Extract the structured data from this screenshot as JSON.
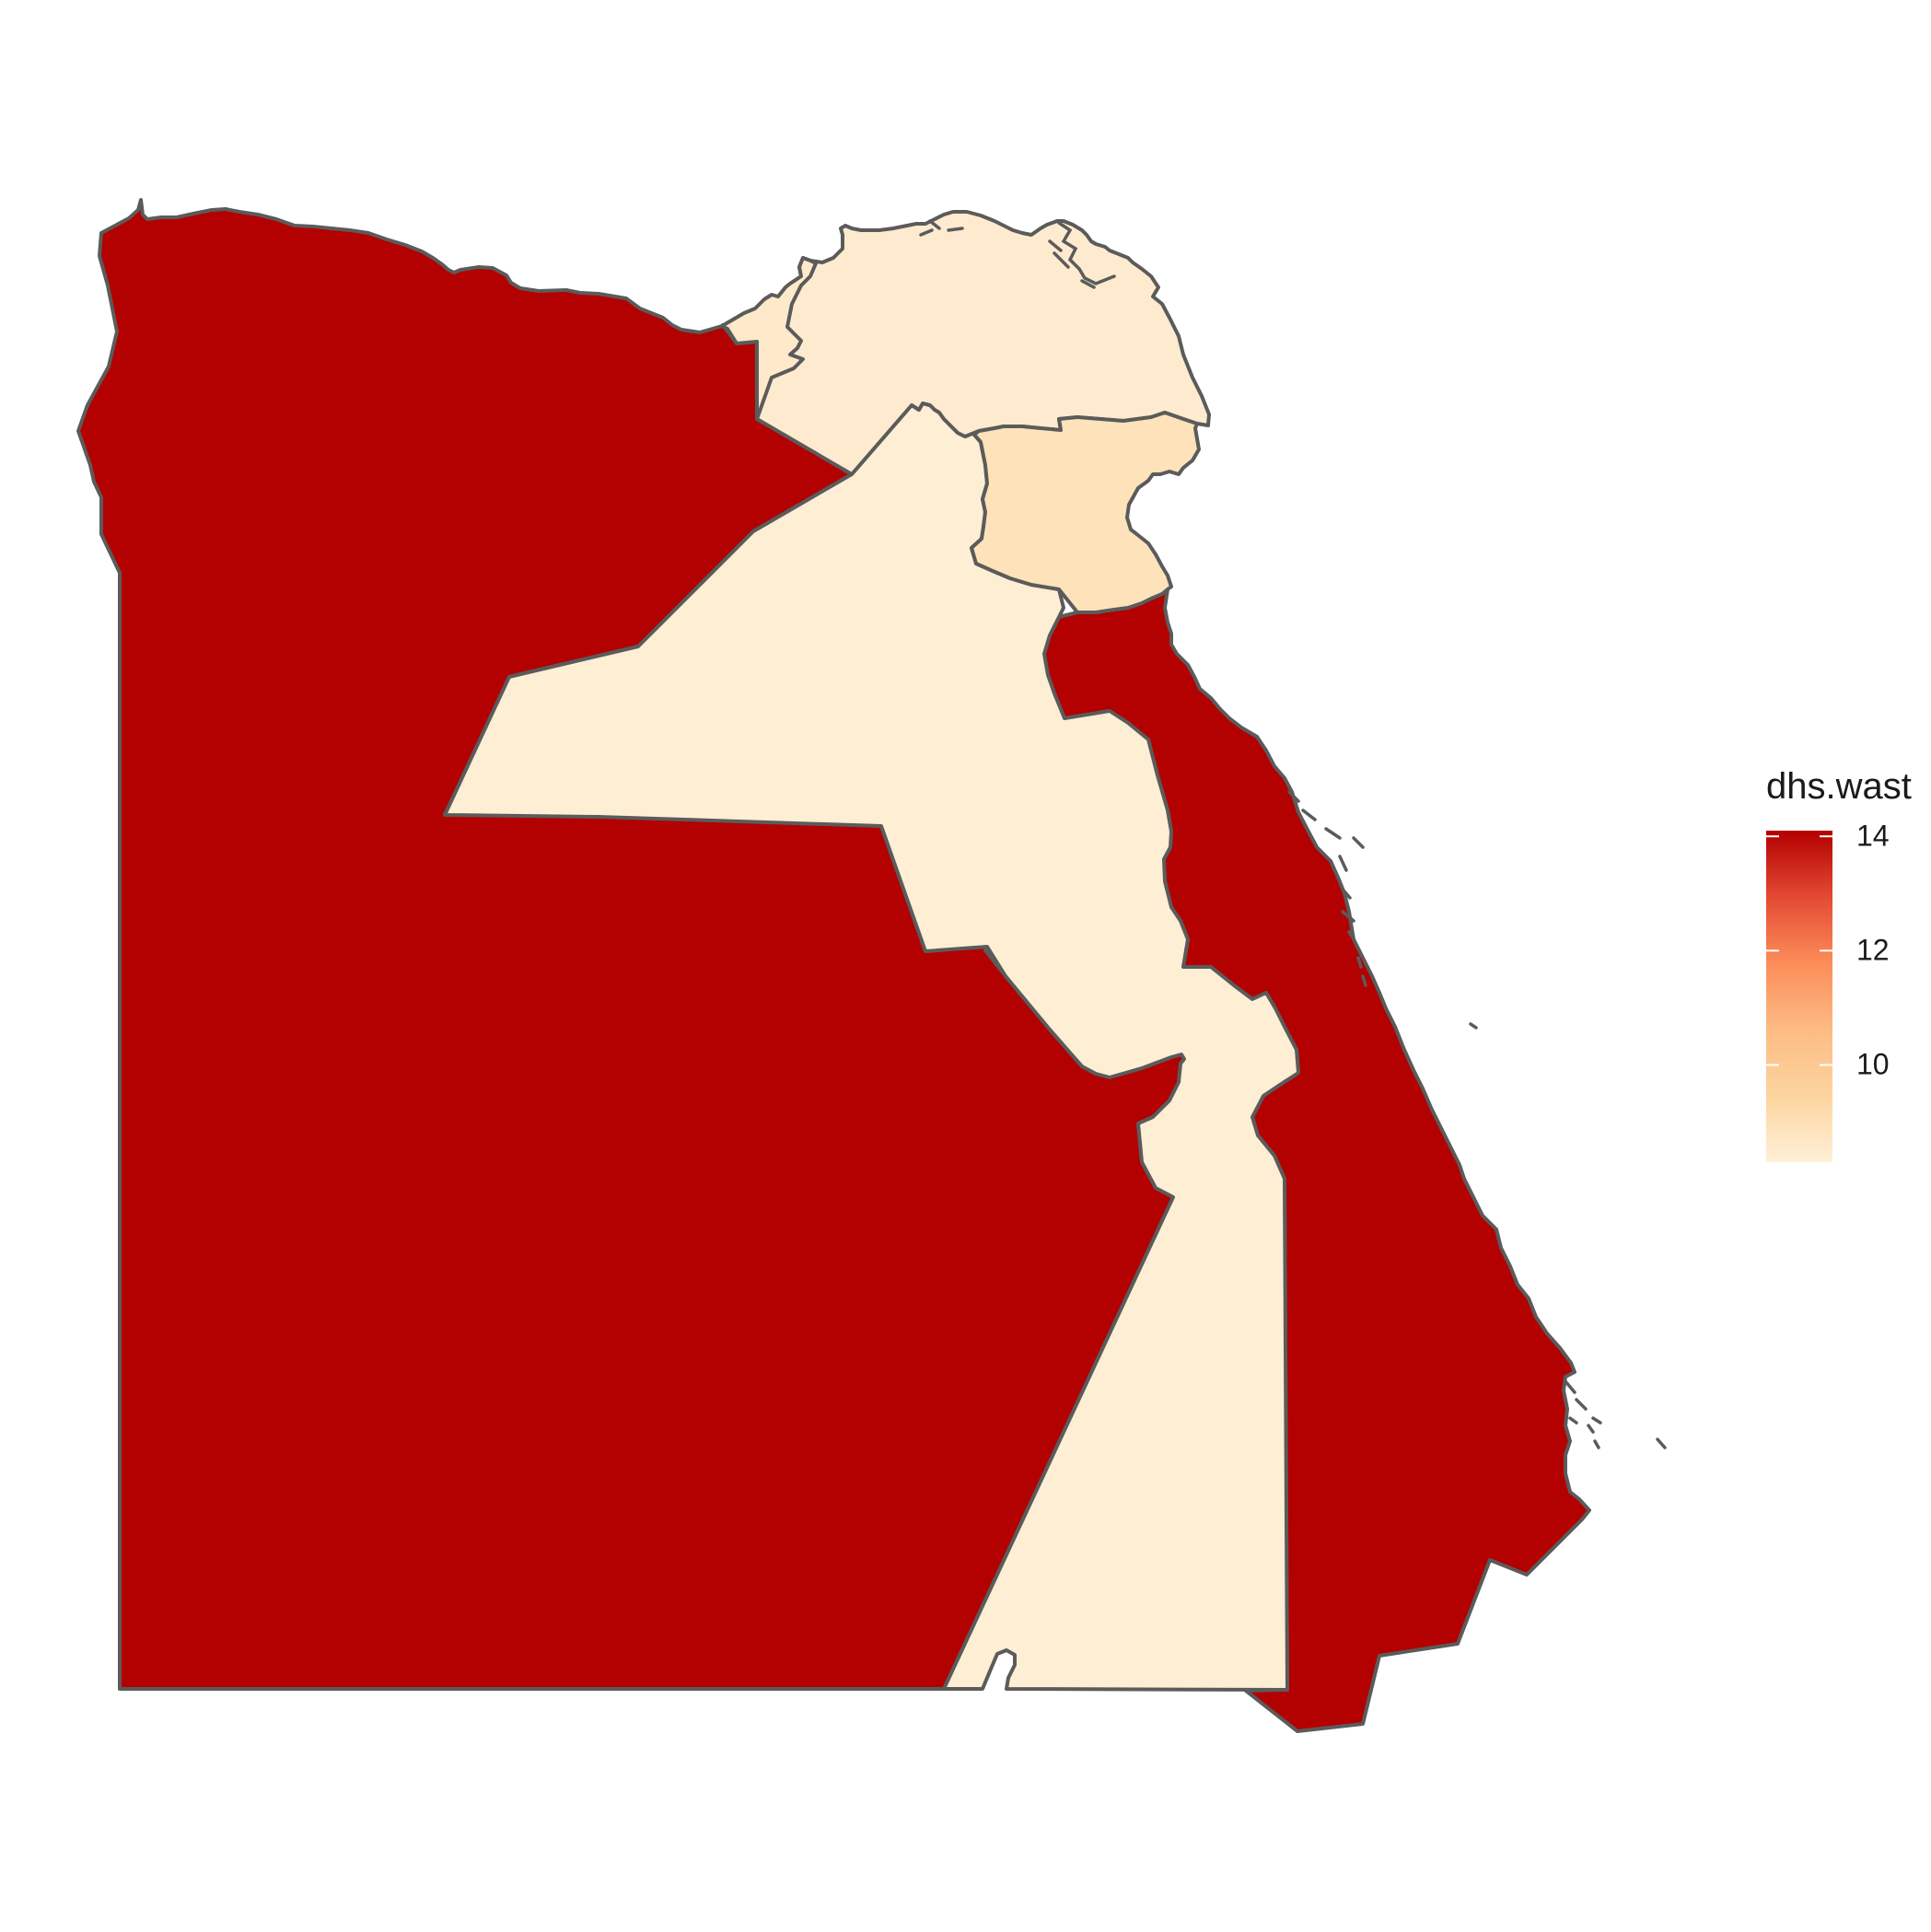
{
  "map": {
    "type": "choropleth",
    "fill_variable": "dhs.wast",
    "border_color": "#5b5b5b",
    "regions": [
      {
        "id": "west",
        "value": 14.1
      },
      {
        "id": "east",
        "value": 14.1
      },
      {
        "id": "central",
        "value": 8.4
      },
      {
        "id": "delta",
        "value": 8.5
      },
      {
        "id": "alexandria-strip",
        "value": 8.6
      },
      {
        "id": "canal",
        "value": 8.9
      }
    ]
  },
  "legend": {
    "title": "dhs.wast",
    "min": 8.3,
    "max": 14.1,
    "color_low": "#fef0d9",
    "color_high": "#b30000",
    "gradient": [
      "#fef0d9",
      "#fdd49e",
      "#fdbb84",
      "#fc8d59",
      "#e34a33",
      "#b30000"
    ],
    "ticks": [
      {
        "value": 14,
        "label": "14"
      },
      {
        "value": 12,
        "label": "12"
      },
      {
        "value": 10,
        "label": "10"
      }
    ]
  }
}
